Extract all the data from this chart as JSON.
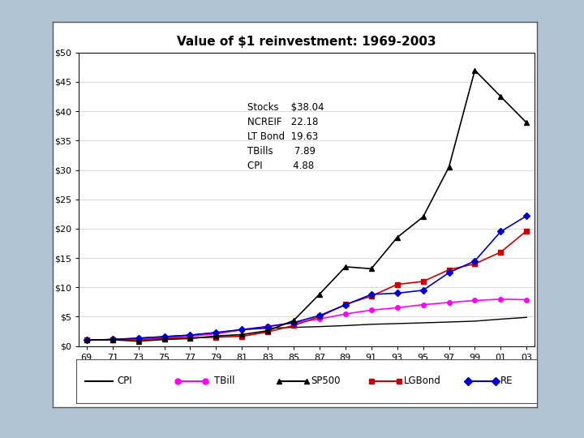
{
  "title": "Value of $1 reinvestment: 1969-2003",
  "xlabels": [
    "69",
    "71",
    "73",
    "75",
    "77",
    "79",
    "81",
    "83",
    "85",
    "87",
    "89",
    "91",
    "93",
    "95",
    "97",
    "99",
    "01",
    "03"
  ],
  "CPI": [
    1.0,
    1.12,
    1.33,
    1.6,
    1.87,
    2.28,
    2.78,
    3.03,
    3.18,
    3.31,
    3.48,
    3.7,
    3.82,
    3.95,
    4.09,
    4.24,
    4.58,
    4.88
  ],
  "TBill": [
    1.0,
    1.12,
    1.27,
    1.45,
    1.67,
    2.08,
    2.76,
    3.36,
    3.93,
    4.61,
    5.47,
    6.11,
    6.53,
    7.04,
    7.42,
    7.76,
    7.98,
    7.89
  ],
  "SP500": [
    1.0,
    1.08,
    0.82,
    1.12,
    1.28,
    1.7,
    1.95,
    2.6,
    4.35,
    8.84,
    13.5,
    13.17,
    18.5,
    22.0,
    30.5,
    47.0,
    42.5,
    38.04
  ],
  "LGBond": [
    1.0,
    1.1,
    1.08,
    1.3,
    1.4,
    1.5,
    1.65,
    2.4,
    3.5,
    5.0,
    7.1,
    8.5,
    10.5,
    11.0,
    13.0,
    14.0,
    16.0,
    19.63
  ],
  "RE": [
    1.0,
    1.12,
    1.35,
    1.6,
    1.85,
    2.3,
    2.8,
    3.3,
    4.0,
    5.2,
    7.0,
    8.8,
    9.0,
    9.5,
    12.5,
    14.5,
    19.5,
    22.18
  ],
  "CPI_color": "#000000",
  "TBill_color": "#ff00ff",
  "SP500_color": "#000000",
  "LGBond_color": "#cc0000",
  "RE_color": "#0000cc",
  "background_color": "#b0c4d4",
  "plot_bg_color": "#ffffff",
  "frame_bg_color": "#ffffff",
  "ylim": [
    0,
    50
  ],
  "yticks": [
    0,
    5,
    10,
    15,
    20,
    25,
    30,
    35,
    40,
    45,
    50
  ],
  "annotation_text": "Stocks    $38.04\nNCREIF   22.18\nLT Bond  19.63\nTBills       7.89\nCPI          4.88",
  "legend_labels": [
    "CPI",
    "TBill",
    "SP500",
    "LGBond",
    "RE"
  ]
}
